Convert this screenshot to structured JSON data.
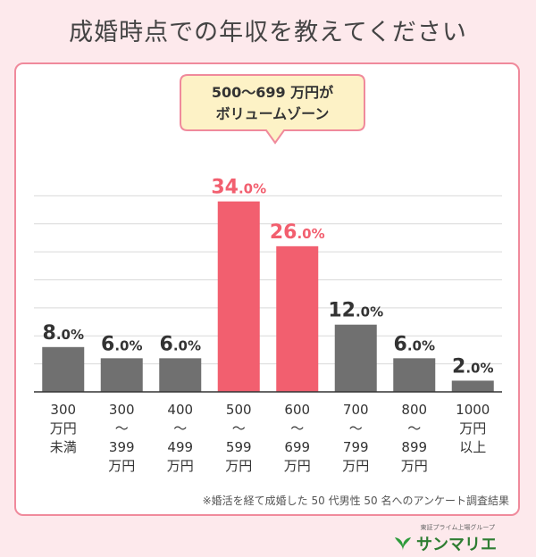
{
  "title": "成婚時点での年収を教えてください",
  "callout": {
    "line1": "500〜699 万円が",
    "line2": "ボリュームゾーン"
  },
  "note": "※婚活を経て成婚した 50 代男性 50 名へのアンケート調査結果",
  "brand": {
    "tagline": "東証プライム上場グループ",
    "name": "サンマリエ"
  },
  "colors": {
    "highlight": "#f25f6f",
    "normal": "#707070",
    "grid": "#d9d9d9",
    "border": "#f08a9c"
  },
  "chart_data": {
    "type": "bar",
    "title": "成婚時点での年収を教えてください",
    "categories": [
      [
        "300",
        "万円",
        "未満"
      ],
      [
        "300",
        "〜",
        "399",
        "万円"
      ],
      [
        "400",
        "〜",
        "499",
        "万円"
      ],
      [
        "500",
        "〜",
        "599",
        "万円"
      ],
      [
        "600",
        "〜",
        "699",
        "万円"
      ],
      [
        "700",
        "〜",
        "799",
        "万円"
      ],
      [
        "800",
        "〜",
        "899",
        "万円"
      ],
      [
        "1000",
        "万円",
        "以上"
      ]
    ],
    "values": [
      8.0,
      6.0,
      6.0,
      34.0,
      26.0,
      12.0,
      6.0,
      2.0
    ],
    "highlight": [
      false,
      false,
      false,
      true,
      true,
      false,
      false,
      false
    ],
    "unit": "%",
    "ylim": [
      0,
      40
    ],
    "grid": true
  }
}
